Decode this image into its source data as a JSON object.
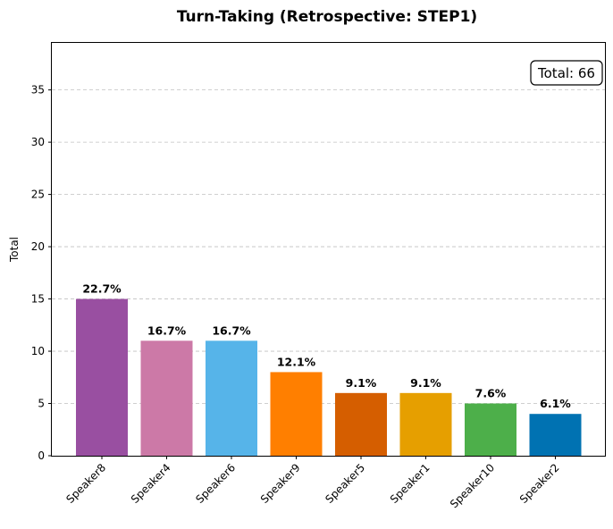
{
  "chart_data": {
    "type": "bar",
    "title": "Turn-Taking (Retrospective: STEP1)",
    "xlabel": "",
    "ylabel": "Total",
    "categories": [
      "Speaker8",
      "Speaker4",
      "Speaker6",
      "Speaker9",
      "Speaker5",
      "Speaker1",
      "Speaker10",
      "Speaker2"
    ],
    "values": [
      15,
      11,
      11,
      8,
      6,
      6,
      5,
      4
    ],
    "percent_labels": [
      "22.7%",
      "16.7%",
      "16.7%",
      "12.1%",
      "9.1%",
      "9.1%",
      "7.6%",
      "6.1%"
    ],
    "colors": [
      "#994fa1",
      "#cc79a7",
      "#56b4e9",
      "#ff7f00",
      "#d55e00",
      "#e69f00",
      "#4daf4a",
      "#0072b2"
    ],
    "ylim": [
      0,
      39.5
    ],
    "yticks": [
      0,
      5,
      10,
      15,
      20,
      25,
      30,
      35
    ],
    "grid": "y-dashed",
    "total_label": "Total: 66"
  }
}
